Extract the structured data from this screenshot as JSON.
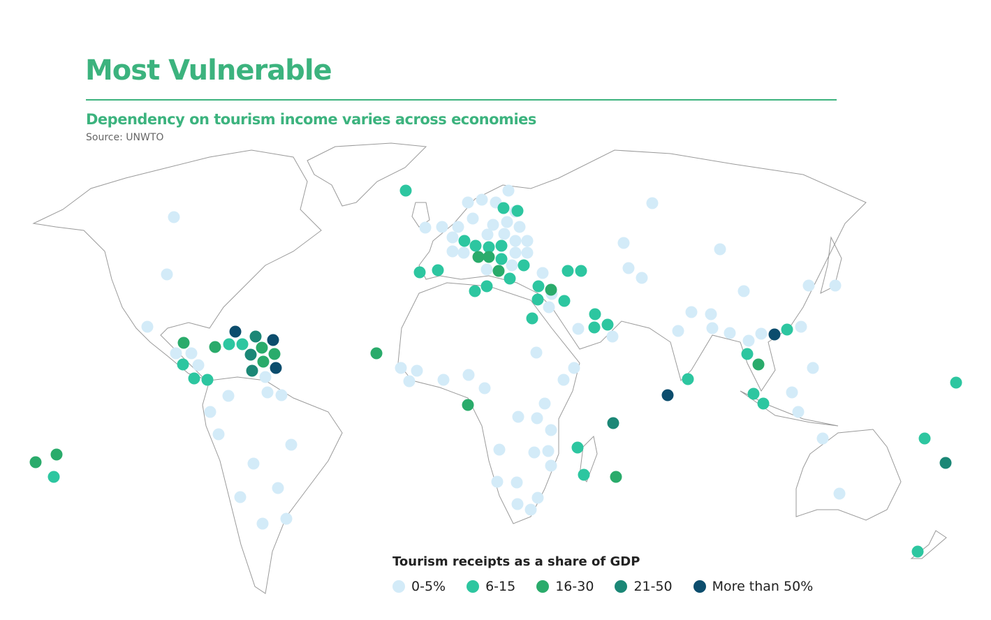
{
  "header": {
    "title": "Most Vulnerable",
    "subtitle": "Dependency on tourism income varies across economies",
    "source": "Source: UNWTO"
  },
  "legend": {
    "title": "Tourism receipts as a share of GDP",
    "items": [
      {
        "label": "0-5%",
        "color": "#d3ebf8"
      },
      {
        "label": "6-15",
        "color": "#2dc6a0"
      },
      {
        "label": "16-30",
        "color": "#2aab6b"
      },
      {
        "label": "21-50",
        "color": "#1b8776"
      },
      {
        "label": "More than 50%",
        "color": "#0c4d6d"
      }
    ]
  }
}
